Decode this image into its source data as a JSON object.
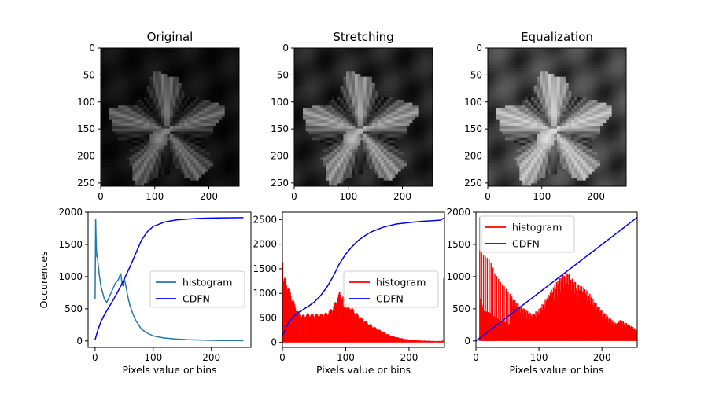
{
  "chart_data": [
    {
      "type": "image",
      "title": "Original",
      "xlim": [
        0,
        256
      ],
      "ylim": [
        256,
        0
      ],
      "xticks": [
        0,
        100,
        200
      ],
      "yticks": [
        0,
        50,
        100,
        150,
        200,
        250
      ],
      "image": {
        "subject": "hibiscus-flower-grayscale",
        "gain": 0.78,
        "gamma": 1.25
      }
    },
    {
      "type": "image",
      "title": "Stretching",
      "xlim": [
        0,
        256
      ],
      "ylim": [
        256,
        0
      ],
      "xticks": [
        0,
        100,
        200
      ],
      "yticks": [
        0,
        50,
        100,
        150,
        200,
        250
      ],
      "image": {
        "subject": "hibiscus-flower-grayscale",
        "gain": 1.0,
        "gamma": 1.0
      }
    },
    {
      "type": "image",
      "title": "Equalization",
      "xlim": [
        0,
        256
      ],
      "ylim": [
        256,
        0
      ],
      "xticks": [
        0,
        100,
        200
      ],
      "yticks": [
        0,
        50,
        100,
        150,
        200,
        250
      ],
      "image": {
        "subject": "hibiscus-flower-grayscale",
        "gain": 1.08,
        "gamma": 0.7
      }
    },
    {
      "type": "line",
      "xlabel": "Pixels value or bins",
      "ylabel": "Occurences",
      "xlim": [
        -12,
        268
      ],
      "ylim": [
        -100,
        2000
      ],
      "xticks": [
        0,
        100,
        200
      ],
      "yticks": [
        0,
        500,
        1000,
        1500,
        2000
      ],
      "legend": "center-right",
      "series": [
        {
          "name": "histogram",
          "color": "#1f77b4",
          "style": "line",
          "x": [
            0,
            1,
            2,
            3,
            4,
            5,
            7,
            10,
            13,
            16,
            20,
            25,
            30,
            35,
            40,
            44,
            46,
            48,
            50,
            53,
            56,
            60,
            65,
            70,
            75,
            80,
            90,
            100,
            110,
            120,
            140,
            160,
            180,
            200,
            220,
            240,
            255
          ],
          "y": [
            650,
            1900,
            1500,
            1300,
            1350,
            1200,
            1050,
            850,
            750,
            650,
            600,
            700,
            800,
            900,
            950,
            1050,
            920,
            850,
            980,
            850,
            700,
            550,
            420,
            320,
            250,
            180,
            120,
            80,
            60,
            45,
            30,
            20,
            15,
            10,
            8,
            6,
            5
          ]
        },
        {
          "name": "CDFN",
          "color": "#0000ff",
          "style": "line",
          "x": [
            0,
            2,
            5,
            10,
            15,
            20,
            30,
            40,
            50,
            60,
            70,
            80,
            90,
            100,
            120,
            140,
            160,
            180,
            200,
            220,
            240,
            255
          ],
          "y": [
            20,
            80,
            180,
            300,
            390,
            470,
            620,
            780,
            960,
            1150,
            1360,
            1570,
            1700,
            1780,
            1850,
            1880,
            1895,
            1905,
            1910,
            1913,
            1915,
            1916
          ]
        }
      ]
    },
    {
      "type": "bar",
      "xlabel": "Pixels value or bins",
      "ylabel": "",
      "xlim": [
        0,
        256
      ],
      "ylim": [
        -100,
        2650
      ],
      "xticks": [
        0,
        100,
        200
      ],
      "yticks": [
        0,
        500,
        1000,
        1500,
        2000,
        2500
      ],
      "legend": "center-right",
      "series": [
        {
          "name": "histogram",
          "color": "#ff0000",
          "style": "bars",
          "x": [
            0,
            1,
            3,
            5,
            8,
            12,
            16,
            20,
            25,
            30,
            40,
            50,
            60,
            70,
            80,
            85,
            90,
            95,
            100,
            110,
            120,
            130,
            140,
            150,
            160,
            170,
            180,
            190,
            200,
            210,
            220,
            230,
            240,
            250,
            253,
            254,
            255
          ],
          "y": [
            1900,
            1350,
            1330,
            1280,
            1200,
            1050,
            900,
            750,
            620,
            560,
            600,
            590,
            580,
            620,
            750,
            900,
            1050,
            950,
            850,
            700,
            560,
            450,
            360,
            280,
            210,
            150,
            110,
            80,
            60,
            45,
            40,
            35,
            30,
            30,
            40,
            1350,
            1350
          ]
        },
        {
          "name": "CDFN",
          "color": "#0000ff",
          "style": "line",
          "x": [
            0,
            5,
            10,
            20,
            30,
            40,
            50,
            60,
            70,
            80,
            90,
            100,
            110,
            120,
            130,
            140,
            160,
            180,
            200,
            220,
            240,
            250,
            256
          ],
          "y": [
            130,
            280,
            420,
            560,
            650,
            730,
            820,
            950,
            1120,
            1340,
            1600,
            1800,
            1950,
            2080,
            2170,
            2250,
            2350,
            2410,
            2440,
            2465,
            2480,
            2490,
            2540
          ]
        }
      ]
    },
    {
      "type": "bar",
      "xlabel": "Pixels value or bins",
      "ylabel": "",
      "xlim": [
        0,
        256
      ],
      "ylim": [
        -100,
        2000
      ],
      "xticks": [
        0,
        100,
        200
      ],
      "yticks": [
        0,
        500,
        1000,
        1500,
        2000
      ],
      "legend": "upper-left",
      "series": [
        {
          "name": "histogram",
          "color": "#ff0000",
          "style": "spikes",
          "x": [
            6,
            8,
            12,
            16,
            20,
            25,
            30,
            35,
            40,
            45,
            50,
            55,
            60,
            70,
            80,
            90,
            100,
            110,
            120,
            130,
            140,
            145,
            150,
            160,
            170,
            180,
            190,
            200,
            210,
            220,
            224,
            228,
            235,
            245,
            255
          ],
          "y": [
            1920,
            1850,
            1330,
            1300,
            1280,
            1200,
            1050,
            980,
            900,
            850,
            780,
            720,
            650,
            560,
            480,
            420,
            500,
            640,
            800,
            950,
            1050,
            1100,
            1000,
            900,
            850,
            750,
            600,
            480,
            380,
            300,
            280,
            330,
            300,
            250,
            180
          ]
        },
        {
          "name": "CDFN",
          "color": "#0000ff",
          "style": "line",
          "x": [
            0,
            256
          ],
          "y": [
            0,
            1920
          ]
        }
      ]
    }
  ]
}
